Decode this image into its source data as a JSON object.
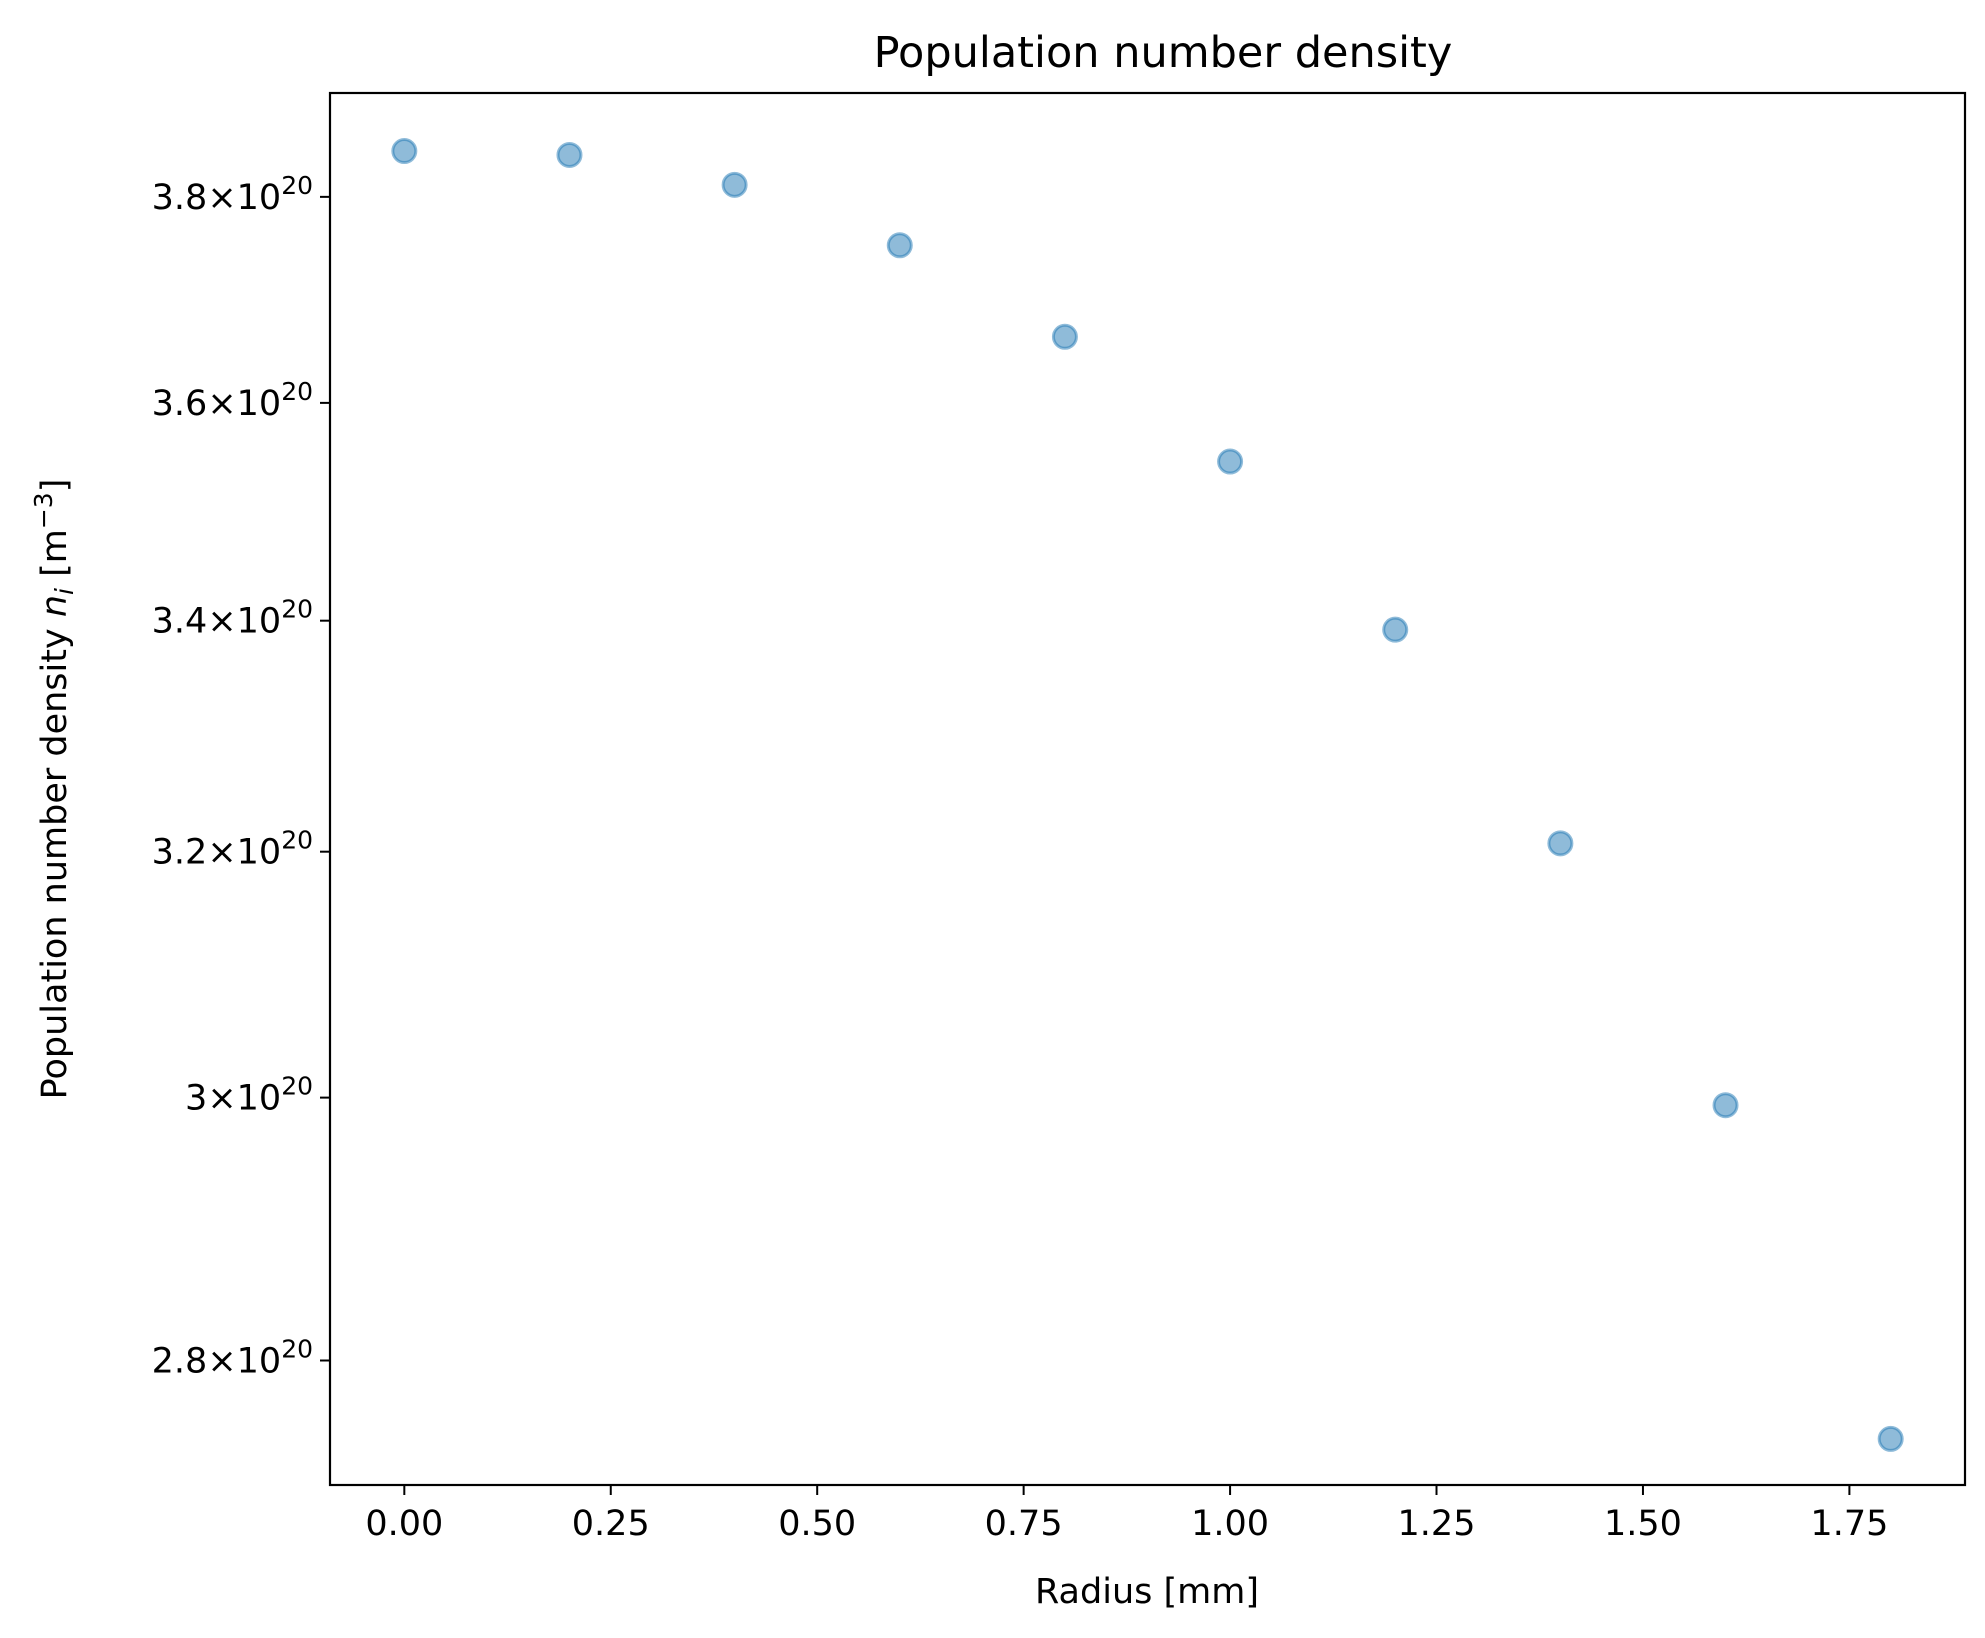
{
  "chart_data": {
    "type": "scatter",
    "title": "Population number density",
    "xlabel": "Radius [mm]",
    "ylabel": {
      "main": "Population number density ",
      "var_base": "n",
      "var_sub": "i",
      "unit_open": " [m",
      "unit_sup": "−3",
      "unit_close": "]"
    },
    "yscale": "log",
    "xlim": [
      -0.09,
      1.89
    ],
    "ylim": [
      2.71e+20,
      3.905e+20
    ],
    "grid": false,
    "legend": "none",
    "marker_color": "#1f77b4",
    "marker_alpha": 0.5,
    "series": [
      {
        "x": [
          0.0,
          0.2,
          0.4,
          0.6,
          0.8,
          1.0,
          1.2,
          1.4,
          1.6,
          1.8
        ],
        "y": [
          3.846e+20,
          3.842e+20,
          3.812e+20,
          3.752e+20,
          3.663e+20,
          3.545e+20,
          3.392e+20,
          3.207e+20,
          2.994e+20,
          2.743e+20
        ]
      }
    ],
    "xticks": [
      {
        "value": 0.0,
        "label": "0.00"
      },
      {
        "value": 0.25,
        "label": "0.25"
      },
      {
        "value": 0.5,
        "label": "0.50"
      },
      {
        "value": 0.75,
        "label": "0.75"
      },
      {
        "value": 1.0,
        "label": "1.00"
      },
      {
        "value": 1.25,
        "label": "1.25"
      },
      {
        "value": 1.5,
        "label": "1.50"
      },
      {
        "value": 1.75,
        "label": "1.75"
      }
    ],
    "yticks": [
      {
        "value": 2.8e+20,
        "mantissa": "2.8",
        "times": "×",
        "base": "10",
        "exponent": "20"
      },
      {
        "value": 3e+20,
        "mantissa": "3",
        "times": "×",
        "base": "10",
        "exponent": "20"
      },
      {
        "value": 3.2e+20,
        "mantissa": "3.2",
        "times": "×",
        "base": "10",
        "exponent": "20"
      },
      {
        "value": 3.4e+20,
        "mantissa": "3.4",
        "times": "×",
        "base": "10",
        "exponent": "20"
      },
      {
        "value": 3.6e+20,
        "mantissa": "3.6",
        "times": "×",
        "base": "10",
        "exponent": "20"
      },
      {
        "value": 3.8e+20,
        "mantissa": "3.8",
        "times": "×",
        "base": "10",
        "exponent": "20"
      }
    ]
  }
}
